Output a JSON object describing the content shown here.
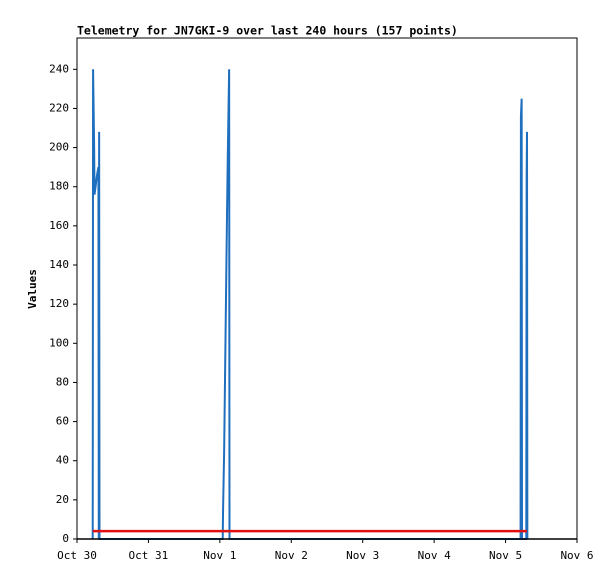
{
  "chart_data": {
    "type": "line",
    "title": "Telemetry for JN7GKI-9 over last 240 hours (157 points)",
    "ylabel": "Values",
    "xlim": [
      0,
      7
    ],
    "xticks": [
      {
        "value": 0,
        "label": "Oct 30"
      },
      {
        "value": 1,
        "label": "Oct 31"
      },
      {
        "value": 2,
        "label": "Nov 1"
      },
      {
        "value": 3,
        "label": "Nov 2"
      },
      {
        "value": 4,
        "label": "Nov 3"
      },
      {
        "value": 5,
        "label": "Nov 4"
      },
      {
        "value": 6,
        "label": "Nov 5"
      },
      {
        "value": 7,
        "label": "Nov 6"
      }
    ],
    "ylim": [
      0,
      256
    ],
    "yticks": [
      0,
      20,
      40,
      60,
      80,
      100,
      120,
      140,
      160,
      180,
      200,
      220,
      240
    ],
    "series": [
      {
        "color": "#1f6fbf",
        "x": [
          0.22,
          0.225,
          0.24,
          0.245,
          0.26,
          0.28,
          0.3,
          0.305,
          0.31,
          0.315,
          2.04,
          2.045,
          2.06,
          2.07,
          2.08,
          2.09,
          2.1,
          2.11,
          2.13,
          2.135,
          6.21,
          6.215,
          6.225,
          6.23,
          6.29,
          6.295,
          6.3,
          6.305
        ],
        "values": [
          0,
          240,
          200,
          176,
          180,
          186,
          190,
          0,
          208,
          0,
          0,
          15,
          45,
          75,
          105,
          135,
          165,
          193,
          240,
          0,
          0,
          216,
          225,
          0,
          0,
          185,
          208,
          0
        ]
      },
      {
        "color": "#e01010",
        "x": [
          0.22,
          6.3
        ],
        "values": [
          4,
          4
        ]
      }
    ]
  }
}
